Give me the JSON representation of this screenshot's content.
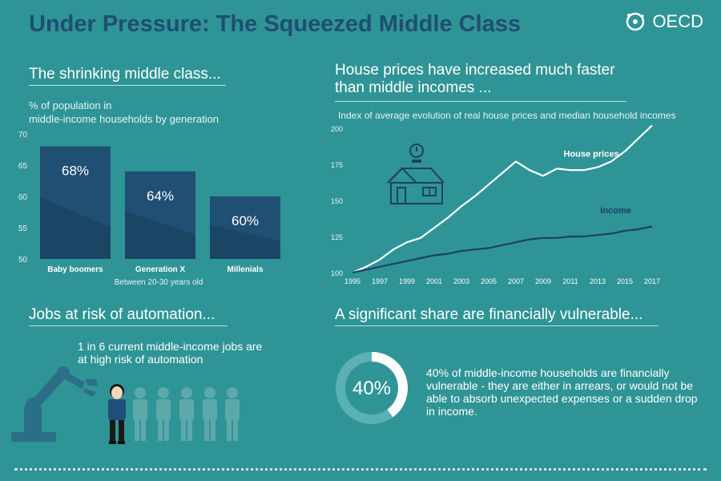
{
  "header": {
    "title": "Under Pressure: The Squeezed Middle Class",
    "logo_text": "OECD"
  },
  "middle_class": {
    "heading": "The shrinking middle class...",
    "subtitle_line1": "% of population in",
    "subtitle_line2": "middle-income households by generation",
    "note": "Between 20-30 years old"
  },
  "house_prices": {
    "heading_line1": "House prices have increased much faster",
    "heading_line2": "than middle incomes ...",
    "subtitle": "Index of average evolution of real house prices and median household incomes"
  },
  "automation": {
    "heading": "Jobs at risk of automation...",
    "text_line1": "1 in 6 current middle-income jobs are",
    "text_line2": "at high risk of automation"
  },
  "vulnerable": {
    "heading": "A significant share are financially vulnerable...",
    "percent_label": "40%",
    "percent_value": 40,
    "text": "40% of middle-income households are financially vulnerable - they are either in arrears, or would not be able to absorb unexpected expenses or a sudden drop in income."
  },
  "colors": {
    "background": "#2f9496",
    "title": "#1f4e73",
    "bar": "#1f4f73",
    "house_line": "#ffffff",
    "income_line": "#1f3f66"
  },
  "chart_data": [
    {
      "type": "bar",
      "title": "The shrinking middle class...",
      "ylabel": "% of population in middle-income households by generation",
      "categories": [
        "Baby boomers",
        "Generation X",
        "Millenials"
      ],
      "values": [
        68,
        64,
        60
      ],
      "data_labels": [
        "68%",
        "64%",
        "60%"
      ],
      "yticks": [
        50,
        55,
        60,
        65,
        70
      ],
      "ylim": [
        50,
        70
      ],
      "xlabel": "Between 20-30 years old"
    },
    {
      "type": "line",
      "title": "House prices have increased much faster than middle incomes ...",
      "subtitle": "Index of average evolution of real house prices and median household incomes",
      "x": [
        1995,
        1996,
        1997,
        1998,
        1999,
        2000,
        2001,
        2002,
        2003,
        2004,
        2005,
        2006,
        2007,
        2008,
        2009,
        2010,
        2011,
        2012,
        2013,
        2014,
        2015,
        2016,
        2017
      ],
      "xticks": [
        "1995",
        "1997",
        "1999",
        "2001",
        "2003",
        "2005",
        "2007",
        "2009",
        "2011",
        "2013",
        "2015",
        "2017"
      ],
      "yticks": [
        100,
        125,
        150,
        175,
        200
      ],
      "ylim": [
        100,
        200
      ],
      "series": [
        {
          "name": "House prices",
          "values": [
            100,
            104,
            109,
            116,
            121,
            124,
            131,
            138,
            146,
            153,
            161,
            169,
            177,
            171,
            167,
            172,
            171,
            171,
            173,
            177,
            184,
            193,
            202
          ]
        },
        {
          "name": "Income",
          "values": [
            100,
            102,
            104,
            106,
            108,
            110,
            112,
            113,
            115,
            116,
            117,
            119,
            121,
            123,
            124,
            124,
            125,
            125,
            126,
            127,
            129,
            130,
            132
          ]
        }
      ]
    }
  ]
}
